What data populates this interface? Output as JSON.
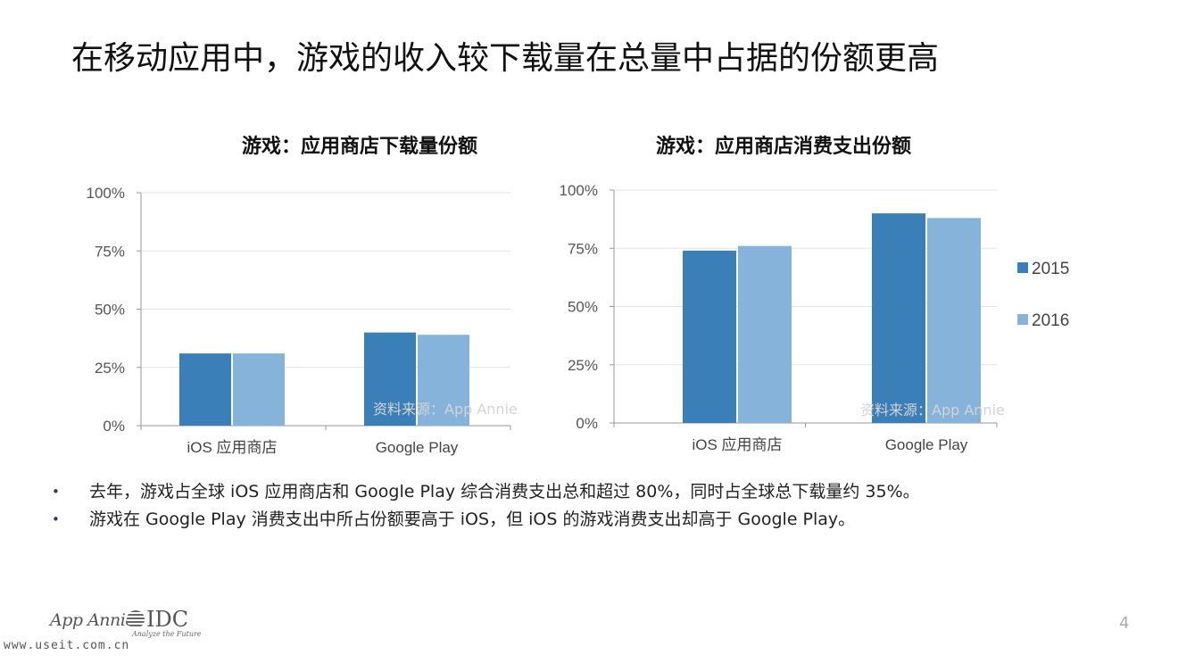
{
  "slide": {
    "title": "在移动应用中，游戏的收入较下载量在总量中占据的份额更高",
    "page_number": "4"
  },
  "chart_data": [
    {
      "type": "bar",
      "title": "游戏：应用商店下载量份额",
      "categories": [
        "iOS 应用商店",
        "Google Play"
      ],
      "series": [
        {
          "name": "2015",
          "values": [
            31,
            40
          ]
        },
        {
          "name": "2016",
          "values": [
            31,
            39
          ]
        }
      ],
      "ylim": [
        0,
        100
      ],
      "yticks": [
        "0%",
        "25%",
        "50%",
        "75%",
        "100%"
      ],
      "grid": true,
      "source_note": "资料来源：App Annie",
      "colors": [
        "#3a7fb7",
        "#85b3d9"
      ]
    },
    {
      "type": "bar",
      "title": "游戏：应用商店消费支出份额",
      "categories": [
        "iOS 应用商店",
        "Google Play"
      ],
      "series": [
        {
          "name": "2015",
          "values": [
            74,
            90
          ]
        },
        {
          "name": "2016",
          "values": [
            76,
            88
          ]
        }
      ],
      "ylim": [
        0,
        100
      ],
      "yticks": [
        "0%",
        "25%",
        "50%",
        "75%",
        "100%"
      ],
      "grid": true,
      "legend": "right",
      "source_note": "资料来源：App Annie",
      "colors": [
        "#3a7fb7",
        "#85b3d9"
      ]
    }
  ],
  "bullets": [
    "去年，游戏占全球 iOS 应用商店和 Google Play 综合消费支出总和超过 80%，同时占全球总下载量约 35%。",
    "游戏在 Google Play 消费支出中所占份额要高于 iOS，但 iOS 的游戏消费支出却高于 Google Play。"
  ],
  "bullet_symbol": "•",
  "footer": {
    "logo_app_annie": "App Annie",
    "logo_idc": "IDC",
    "logo_idc_tagline": "Analyze the Future",
    "watermark": "www.useit.com.cn"
  }
}
